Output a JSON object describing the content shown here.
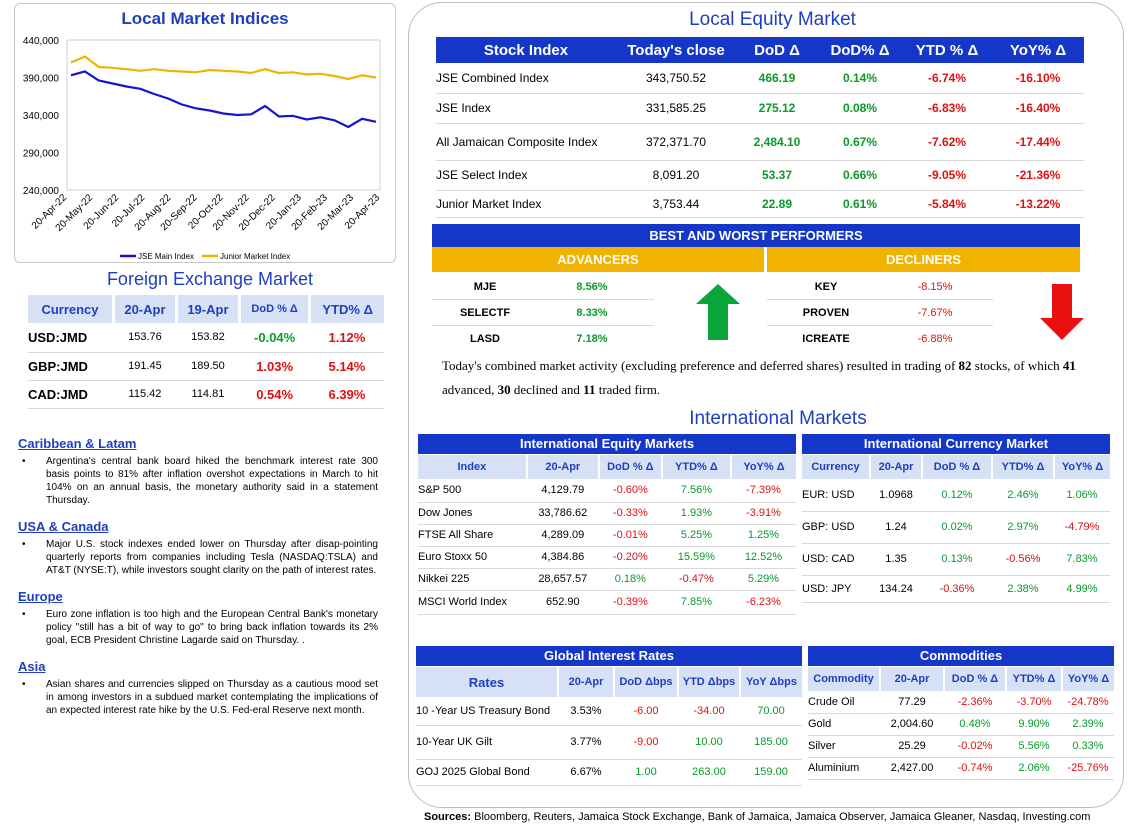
{
  "indices_panel": {
    "title": "Local Market Indices"
  },
  "chart_data": {
    "type": "line",
    "title": "Local Market Indices",
    "y_ticks": [
      "440,000",
      "390,000",
      "340,000",
      "290,000",
      "240,000"
    ],
    "ylim": [
      240000,
      440000
    ],
    "x_ticks": [
      "20-Apr-22",
      "20-May-22",
      "20-Jun-22",
      "20-Jul-22",
      "20-Aug-22",
      "20-Sep-22",
      "20-Oct-22",
      "20-Nov-22",
      "20-Dec-22",
      "20-Jan-23",
      "20-Feb-23",
      "20-Mar-23",
      "20-Apr-23"
    ],
    "legend_position": "bottom",
    "series": [
      {
        "name": "JSE Main Index",
        "color": "#1515d0",
        "values": [
          393000,
          398000,
          386000,
          382000,
          378000,
          375000,
          368000,
          362000,
          354000,
          349000,
          346000,
          342000,
          340000,
          341000,
          352000,
          338000,
          339000,
          334000,
          337000,
          333000,
          324000,
          335000,
          331000
        ]
      },
      {
        "name": "Junior Market Index",
        "color": "#f0b400",
        "values": [
          410000,
          418000,
          404000,
          403000,
          401000,
          399000,
          401000,
          399000,
          398000,
          397000,
          400000,
          399000,
          398000,
          396000,
          401000,
          396000,
          397000,
          394000,
          395000,
          392000,
          388000,
          393000,
          390000
        ]
      }
    ]
  },
  "fx": {
    "title": "Foreign Exchange Market",
    "headers": [
      "Currency",
      "20-Apr",
      "19-Apr",
      "DoD % Δ",
      "YTD% Δ"
    ],
    "rows": [
      {
        "cur": "USD:JMD",
        "a": "153.76",
        "b": "153.82",
        "dod": "-0.04%",
        "ytd": "1.12%"
      },
      {
        "cur": "GBP:JMD",
        "a": "191.45",
        "b": "189.50",
        "dod": "1.03%",
        "ytd": "5.14%"
      },
      {
        "cur": "CAD:JMD",
        "a": "115.42",
        "b": "114.81",
        "dod": "0.54%",
        "ytd": "6.39%"
      }
    ]
  },
  "news": [
    {
      "region": "Caribbean & Latam",
      "text": "Argentina's central bank board hiked the benchmark interest rate 300 basis points to 81% after inflation overshot expectations in March to hit 104% on an annual basis, the monetary authority said in a statement Thursday."
    },
    {
      "region": "USA & Canada",
      "text": "Major U.S. stock indexes ended lower on Thursday after disap-pointing quarterly reports from companies including Tesla (NASDAQ:TSLA) and AT&T (NYSE:T), while investors sought clarity on the path of interest rates."
    },
    {
      "region": "Europe",
      "text": "Euro zone inflation is too high and the European Central Bank's monetary policy \"still has a bit of way to go\" to bring back inflation towards its 2% goal, ECB President Christine Lagarde said on Thursday. ."
    },
    {
      "region": "Asia",
      "text": "Asian shares and currencies slipped on Thursday as a cautious mood set in among investors in a subdued market contemplating the implications of an expected interest rate hike by the U.S. Fed-eral Reserve next month."
    }
  ],
  "equity": {
    "title": "Local Equity Market",
    "headers": [
      "Stock Index",
      "Today's close",
      "DoD  Δ",
      "DoD% Δ",
      "YTD % Δ",
      "YoY% Δ"
    ],
    "rows": [
      {
        "name": "JSE Combined Index",
        "close": "343,750.52",
        "dod": "466.19",
        "dodp": "0.14%",
        "ytd": "-6.74%",
        "yoy": "-16.10%"
      },
      {
        "name": "JSE Index",
        "close": "331,585.25",
        "dod": "275.12",
        "dodp": "0.08%",
        "ytd": "-6.83%",
        "yoy": "-16.40%"
      },
      {
        "name": "All Jamaican Composite Index",
        "close": "372,371.70",
        "dod": "2,484.10",
        "dodp": "0.67%",
        "ytd": "-7.62%",
        "yoy": "-17.44%"
      },
      {
        "name": "JSE Select Index",
        "close": "8,091.20",
        "dod": "53.37",
        "dodp": "0.66%",
        "ytd": "-9.05%",
        "yoy": "-21.36%"
      },
      {
        "name": "Junior Market Index",
        "close": "3,753.44",
        "dod": "22.89",
        "dodp": "0.61%",
        "ytd": "-5.84%",
        "yoy": "-13.22%"
      }
    ]
  },
  "performers": {
    "title": "BEST AND WORST PERFORMERS",
    "adv_label": "ADVANCERS",
    "dec_label": "DECLINERS",
    "advancers": [
      {
        "t": "MJE",
        "v": "8.56%"
      },
      {
        "t": "SELECTF",
        "v": "8.33%"
      },
      {
        "t": "LASD",
        "v": "7.18%"
      }
    ],
    "decliners": [
      {
        "t": "KEY",
        "v": "-8.15%"
      },
      {
        "t": "PROVEN",
        "v": "-7.67%"
      },
      {
        "t": "ICREATE",
        "v": "-6.88%"
      }
    ]
  },
  "activity": {
    "pre": "Today's combined market activity (excluding preference and deferred shares) resulted in trading of ",
    "total": "82",
    "mid1": " stocks, of which ",
    "adv": "41",
    "mid2": " advanced, ",
    "dec": "30",
    "mid3": " declined and ",
    "firm": "11",
    "post": " traded firm."
  },
  "intl": {
    "title": "International Markets"
  },
  "ieq": {
    "title": "International Equity Markets",
    "headers": [
      "Index",
      "20-Apr",
      "DoD % Δ",
      "YTD% Δ",
      "YoY% Δ"
    ],
    "rows": [
      {
        "n": "S&P 500",
        "v": "4,129.79",
        "d": "-0.60%",
        "y": "7.56%",
        "yy": "-7.39%"
      },
      {
        "n": "Dow Jones",
        "v": "33,786.62",
        "d": "-0.33%",
        "y": "1.93%",
        "yy": "-3.91%"
      },
      {
        "n": "FTSE All Share",
        "v": "4,289.09",
        "d": "-0.01%",
        "y": "5.25%",
        "yy": "1.25%"
      },
      {
        "n": "Euro Stoxx 50",
        "v": "4,384.86",
        "d": "-0.20%",
        "y": "15.59%",
        "yy": "12.52%"
      },
      {
        "n": "Nikkei 225",
        "v": "28,657.57",
        "d": "0.18%",
        "y": "-0.47%",
        "yy": "5.29%"
      },
      {
        "n": "MSCI World Index",
        "v": "652.90",
        "d": "-0.39%",
        "y": "7.85%",
        "yy": "-6.23%"
      }
    ]
  },
  "icur": {
    "title": "International Currency Market",
    "headers": [
      "Currency",
      "20-Apr",
      "DoD % Δ",
      "YTD% Δ",
      "YoY% Δ"
    ],
    "rows": [
      {
        "n": "EUR: USD",
        "v": "1.0968",
        "d": "0.12%",
        "y": "2.46%",
        "yy": "1.06%"
      },
      {
        "n": "GBP: USD",
        "v": "1.24",
        "d": "0.02%",
        "y": "2.97%",
        "yy": "-4.79%"
      },
      {
        "n": "USD: CAD",
        "v": "1.35",
        "d": "0.13%",
        "y": "-0.56%",
        "yy": "7.83%"
      },
      {
        "n": "USD: JPY",
        "v": "134.24",
        "d": "-0.36%",
        "y": "2.38%",
        "yy": "4.99%"
      }
    ]
  },
  "rates": {
    "title": "Global Interest Rates",
    "headers": [
      "Rates",
      "20-Apr",
      "DoD Δbps",
      "YTD Δbps",
      "YoY Δbps"
    ],
    "rows": [
      {
        "n": "10 -Year US Treasury Bond",
        "v": "3.53%",
        "d": "-6.00",
        "y": "-34.00",
        "yy": "70.00"
      },
      {
        "n": "10-Year UK Gilt",
        "v": "3.77%",
        "d": "-9.00",
        "y": "10.00",
        "yy": "185.00"
      },
      {
        "n": "GOJ 2025 Global Bond",
        "v": "6.67%",
        "d": "1.00",
        "y": "263.00",
        "yy": "159.00"
      }
    ]
  },
  "comm": {
    "title": "Commodities",
    "headers": [
      "Commodity",
      "20-Apr",
      "DoD % Δ",
      "YTD% Δ",
      "YoY% Δ"
    ],
    "rows": [
      {
        "n": "Crude Oil",
        "v": "77.29",
        "d": "-2.36%",
        "y": "-3.70%",
        "yy": "-24.78%"
      },
      {
        "n": "Gold",
        "v": "2,004.60",
        "d": "0.48%",
        "y": "9.90%",
        "yy": "2.39%"
      },
      {
        "n": "Silver",
        "v": "25.29",
        "d": "-0.02%",
        "y": "5.56%",
        "yy": "0.33%"
      },
      {
        "n": "Aluminium",
        "v": "2,427.00",
        "d": "-0.74%",
        "y": "2.06%",
        "yy": "-25.76%"
      }
    ]
  },
  "sources": {
    "label": "Sources:",
    "text": " Bloomberg, Reuters, Jamaica Stock Exchange, Bank of Jamaica, Jamaica Observer, Jamaica Gleaner, Nasdaq, Investing.com"
  }
}
